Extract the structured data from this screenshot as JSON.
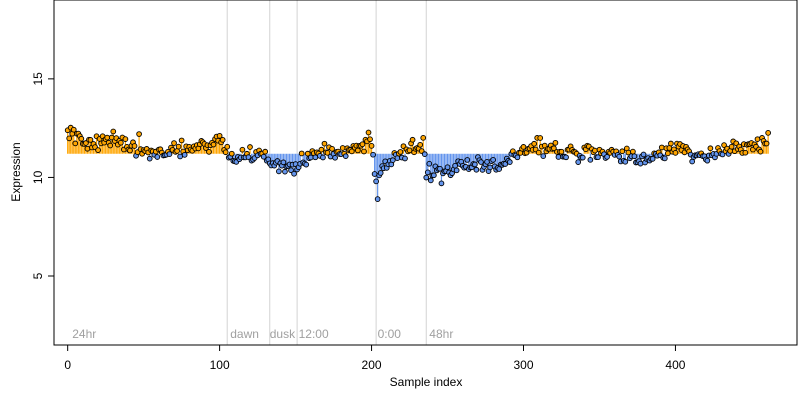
{
  "chart_data": {
    "type": "scatter",
    "title": "",
    "xlabel": "Sample index",
    "ylabel": "Expression",
    "xlim": [
      -9,
      480
    ],
    "ylim": [
      1.5,
      19
    ],
    "x_ticks": [
      0,
      100,
      200,
      300,
      400
    ],
    "x_tick_labels": [
      "0",
      "100",
      "200",
      "300",
      "400"
    ],
    "y_ticks": [
      5,
      10,
      15
    ],
    "y_tick_labels": [
      "5",
      "10",
      "15"
    ],
    "baseline": 11.2,
    "grid": false,
    "colors": {
      "above_baseline": "#ffa500",
      "below_baseline": "#6495ed",
      "marker_edge": "#000000",
      "divider": "#d3d3d3",
      "annotation_text": "#a0a0a0"
    },
    "phase_labels": [
      {
        "x": 3,
        "text": "24hr"
      },
      {
        "x": 107,
        "text": "dawn"
      },
      {
        "x": 133,
        "text": "dusk"
      },
      {
        "x": 152,
        "text": "12:00"
      },
      {
        "x": 204,
        "text": "0:00"
      },
      {
        "x": 238,
        "text": "48hr"
      }
    ],
    "dividers_x": [
      105,
      133,
      151,
      203,
      236
    ],
    "profile": [
      [
        0,
        12.2
      ],
      [
        3,
        12.4
      ],
      [
        6,
        12.0
      ],
      [
        10,
        11.8
      ],
      [
        20,
        11.7
      ],
      [
        30,
        11.9
      ],
      [
        40,
        11.6
      ],
      [
        50,
        11.4
      ],
      [
        60,
        11.2
      ],
      [
        70,
        11.4
      ],
      [
        80,
        11.5
      ],
      [
        90,
        11.6
      ],
      [
        100,
        12.0
      ],
      [
        105,
        11.2
      ],
      [
        115,
        11.0
      ],
      [
        125,
        11.2
      ],
      [
        133,
        10.7
      ],
      [
        140,
        10.6
      ],
      [
        151,
        10.6
      ],
      [
        160,
        11.0
      ],
      [
        170,
        11.4
      ],
      [
        180,
        11.2
      ],
      [
        190,
        11.6
      ],
      [
        200,
        11.7
      ],
      [
        203,
        9.6
      ],
      [
        206,
        10.3
      ],
      [
        215,
        10.9
      ],
      [
        225,
        11.3
      ],
      [
        234,
        11.8
      ],
      [
        236,
        10.4
      ],
      [
        245,
        10.3
      ],
      [
        255,
        10.6
      ],
      [
        265,
        10.7
      ],
      [
        275,
        10.5
      ],
      [
        285,
        10.6
      ],
      [
        295,
        11.2
      ],
      [
        305,
        11.5
      ],
      [
        315,
        11.5
      ],
      [
        325,
        11.4
      ],
      [
        335,
        11.2
      ],
      [
        345,
        11.3
      ],
      [
        355,
        11.2
      ],
      [
        365,
        11.1
      ],
      [
        375,
        10.9
      ],
      [
        385,
        11.1
      ],
      [
        395,
        11.4
      ],
      [
        405,
        11.5
      ],
      [
        415,
        11.2
      ],
      [
        425,
        11.2
      ],
      [
        435,
        11.3
      ],
      [
        445,
        11.6
      ],
      [
        455,
        11.6
      ],
      [
        461,
        11.8
      ]
    ],
    "n_points": 462,
    "noise_sd": 0.35,
    "outliers": [
      {
        "x": 204,
        "y": 8.9
      },
      {
        "x": 203,
        "y": 9.8
      },
      {
        "x": 246,
        "y": 9.7
      },
      {
        "x": 47,
        "y": 12.2
      },
      {
        "x": 311,
        "y": 12.0
      }
    ]
  }
}
